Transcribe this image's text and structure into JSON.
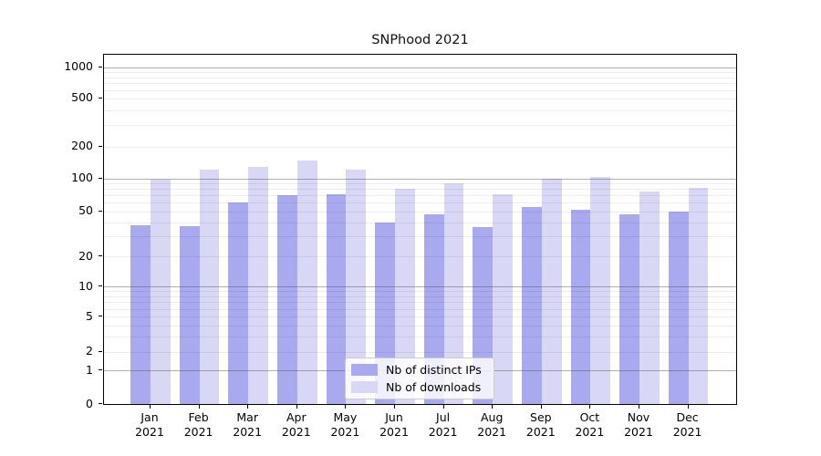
{
  "title": "SNPhood 2021",
  "chart_data": {
    "type": "bar",
    "title": "SNPhood 2021",
    "year": "2021",
    "months": [
      "Jan",
      "Feb",
      "Mar",
      "Apr",
      "May",
      "Jun",
      "Jul",
      "Aug",
      "Sep",
      "Oct",
      "Nov",
      "Dec"
    ],
    "categories": [
      "Jan 2021",
      "Feb 2021",
      "Mar 2021",
      "Apr 2021",
      "May 2021",
      "Jun 2021",
      "Jul 2021",
      "Aug 2021",
      "Sep 2021",
      "Oct 2021",
      "Nov 2021",
      "Dec 2021"
    ],
    "series": [
      {
        "name": "Nb of distinct IPs",
        "color": "#a9a9f0",
        "values": [
          38,
          37,
          60,
          70,
          72,
          40,
          47,
          36,
          55,
          52,
          47,
          50
        ]
      },
      {
        "name": "Nb of downloads",
        "color": "#d8d8f6",
        "values": [
          97,
          120,
          128,
          148,
          121,
          80,
          90,
          72,
          100,
          104,
          76,
          82
        ]
      }
    ],
    "yticks": [
      0,
      1,
      2,
      5,
      10,
      20,
      50,
      100,
      200,
      500,
      1000
    ],
    "ylim": [
      0,
      1000
    ],
    "yscale": "symlog",
    "grid": "on",
    "legend_position": "lower center",
    "colors": {
      "bar_ips": "#a9a9f0",
      "bar_downloads": "#d8d8f6",
      "major_grid": "#b0b0b0",
      "minor_grid": "#ebebeb",
      "axis": "#000000"
    }
  }
}
